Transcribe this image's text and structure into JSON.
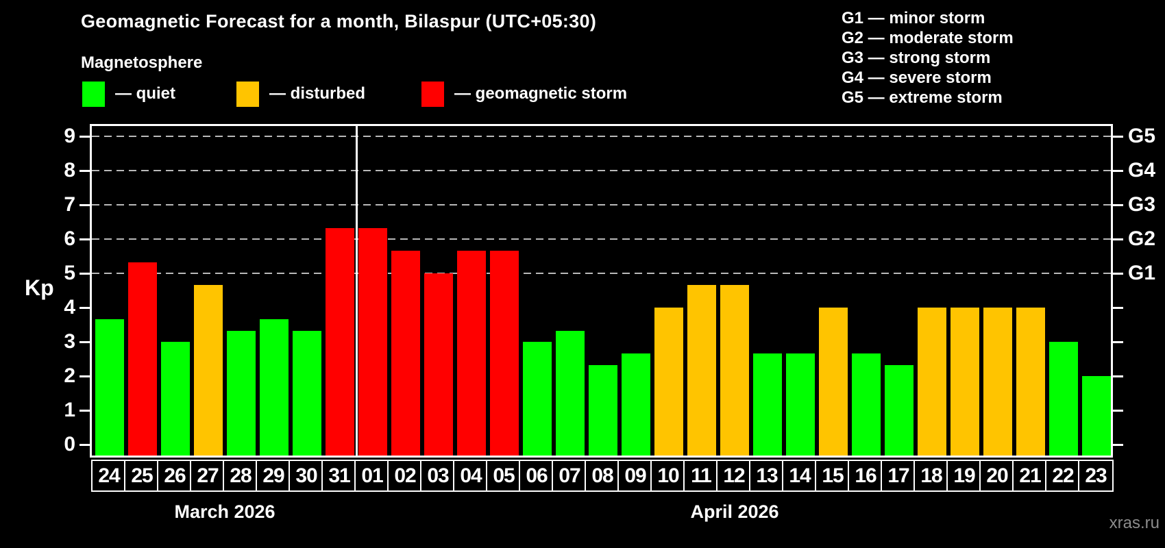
{
  "title": "Geomagnetic Forecast for a month, Bilaspur (UTC+05:30)",
  "subtitle": "Magnetosphere",
  "legend": {
    "items": [
      {
        "name": "quiet",
        "label": "— quiet",
        "color": "#00ff00"
      },
      {
        "name": "disturbed",
        "label": "— disturbed",
        "color": "#ffc400"
      },
      {
        "name": "geomagnetic-storm",
        "label": "— geomagnetic storm",
        "color": "#ff0000"
      }
    ]
  },
  "g_legend": {
    "items": [
      "G1 — minor storm",
      "G2 — moderate storm",
      "G3 — strong storm",
      "G4 — severe storm",
      "G5 — extreme storm"
    ]
  },
  "y_axis": {
    "label": "Kp",
    "ticks": [
      "0",
      "1",
      "2",
      "3",
      "4",
      "5",
      "6",
      "7",
      "8",
      "9"
    ]
  },
  "right_axis": {
    "labels": [
      {
        "label": "G1",
        "kp": 5
      },
      {
        "label": "G2",
        "kp": 6
      },
      {
        "label": "G3",
        "kp": 7
      },
      {
        "label": "G4",
        "kp": 8
      },
      {
        "label": "G5",
        "kp": 9
      }
    ]
  },
  "months": [
    {
      "label": "March 2026",
      "days_count": 8
    },
    {
      "label": "April 2026",
      "days_count": 23
    }
  ],
  "watermark": "xras.ru",
  "chart_data": {
    "type": "bar",
    "title": "Geomagnetic Forecast for a month, Bilaspur (UTC+05:30)",
    "xlabel": "",
    "ylabel": "Kp",
    "ylim": [
      0,
      9
    ],
    "grid": "horizontal dashed lines at Kp 5,6,7,8,9",
    "legend_position": "top-left",
    "status_colors": {
      "quiet": "#00ff00",
      "disturbed": "#ffc400",
      "storm": "#ff0000"
    },
    "right_axis_scale": {
      "G1": 5,
      "G2": 6,
      "G3": 7,
      "G4": 8,
      "G5": 9
    },
    "points": [
      {
        "month": "March 2026",
        "day": "24",
        "kp": 3.67,
        "status": "quiet"
      },
      {
        "month": "March 2026",
        "day": "25",
        "kp": 5.33,
        "status": "storm"
      },
      {
        "month": "March 2026",
        "day": "26",
        "kp": 3.0,
        "status": "quiet"
      },
      {
        "month": "March 2026",
        "day": "27",
        "kp": 4.67,
        "status": "disturbed"
      },
      {
        "month": "March 2026",
        "day": "28",
        "kp": 3.33,
        "status": "quiet"
      },
      {
        "month": "March 2026",
        "day": "29",
        "kp": 3.67,
        "status": "quiet"
      },
      {
        "month": "March 2026",
        "day": "30",
        "kp": 3.33,
        "status": "quiet"
      },
      {
        "month": "March 2026",
        "day": "31",
        "kp": 6.33,
        "status": "storm"
      },
      {
        "month": "April 2026",
        "day": "01",
        "kp": 6.33,
        "status": "storm"
      },
      {
        "month": "April 2026",
        "day": "02",
        "kp": 5.67,
        "status": "storm"
      },
      {
        "month": "April 2026",
        "day": "03",
        "kp": 5.0,
        "status": "storm"
      },
      {
        "month": "April 2026",
        "day": "04",
        "kp": 5.67,
        "status": "storm"
      },
      {
        "month": "April 2026",
        "day": "05",
        "kp": 5.67,
        "status": "storm"
      },
      {
        "month": "April 2026",
        "day": "06",
        "kp": 3.0,
        "status": "quiet"
      },
      {
        "month": "April 2026",
        "day": "07",
        "kp": 3.33,
        "status": "quiet"
      },
      {
        "month": "April 2026",
        "day": "08",
        "kp": 2.33,
        "status": "quiet"
      },
      {
        "month": "April 2026",
        "day": "09",
        "kp": 2.67,
        "status": "quiet"
      },
      {
        "month": "April 2026",
        "day": "10",
        "kp": 4.0,
        "status": "disturbed"
      },
      {
        "month": "April 2026",
        "day": "11",
        "kp": 4.67,
        "status": "disturbed"
      },
      {
        "month": "April 2026",
        "day": "12",
        "kp": 4.67,
        "status": "disturbed"
      },
      {
        "month": "April 2026",
        "day": "13",
        "kp": 2.67,
        "status": "quiet"
      },
      {
        "month": "April 2026",
        "day": "14",
        "kp": 2.67,
        "status": "quiet"
      },
      {
        "month": "April 2026",
        "day": "15",
        "kp": 4.0,
        "status": "disturbed"
      },
      {
        "month": "April 2026",
        "day": "16",
        "kp": 2.67,
        "status": "quiet"
      },
      {
        "month": "April 2026",
        "day": "17",
        "kp": 2.33,
        "status": "quiet"
      },
      {
        "month": "April 2026",
        "day": "18",
        "kp": 4.0,
        "status": "disturbed"
      },
      {
        "month": "April 2026",
        "day": "19",
        "kp": 4.0,
        "status": "disturbed"
      },
      {
        "month": "April 2026",
        "day": "20",
        "kp": 4.0,
        "status": "disturbed"
      },
      {
        "month": "April 2026",
        "day": "21",
        "kp": 4.0,
        "status": "disturbed"
      },
      {
        "month": "April 2026",
        "day": "22",
        "kp": 3.0,
        "status": "quiet"
      },
      {
        "month": "April 2026",
        "day": "23",
        "kp": 2.0,
        "status": "quiet"
      }
    ]
  }
}
